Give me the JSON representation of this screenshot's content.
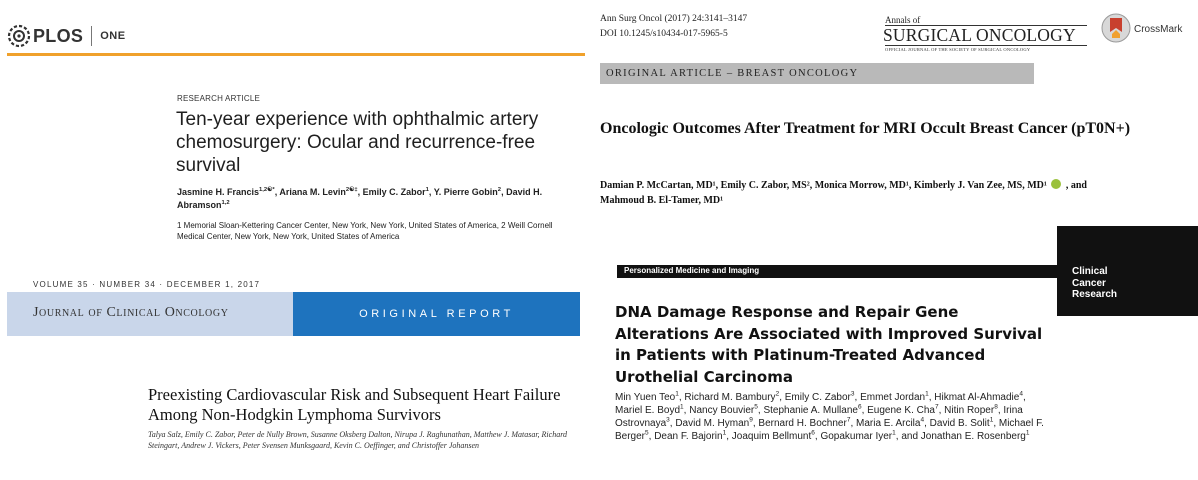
{
  "plos": {
    "brand": "PLOS",
    "journal": "ONE",
    "kicker": "RESEARCH ARTICLE",
    "title": "Ten-year experience with ophthalmic artery chemosurgery: Ocular and recurrence-free survival",
    "authors": [
      {
        "name": "Jasmine H. Francis",
        "sup": "1,2☯*"
      },
      {
        "name": "Ariana M. Levin",
        "sup": "2☯‡"
      },
      {
        "name": "Emily C. Zabor",
        "sup": "1"
      },
      {
        "name": "Y. Pierre Gobin",
        "sup": "2"
      },
      {
        "name": "David H. Abramson",
        "sup": "1,2"
      }
    ],
    "affiliations": "1 Memorial Sloan-Kettering Cancer Center, New York, New York, United States of America, 2 Weill Cornell Medical Center, New York, New York, United States of America",
    "accent_color": "#f0a12b"
  },
  "aso": {
    "citation_line1": "Ann Surg Oncol (2017) 24:3141–3147",
    "citation_line2": "DOI 10.1245/s10434-017-5965-5",
    "journal_prefix": "Annals of",
    "journal_name": "SURGICAL ONCOLOGY",
    "journal_tagline": "OFFICIAL JOURNAL OF THE SOCIETY OF SURGICAL ONCOLOGY",
    "crossmark_label": "CrossMark",
    "section": "ORIGINAL ARTICLE – BREAST ONCOLOGY",
    "title": "Oncologic Outcomes After Treatment for MRI Occult Breast Cancer (pT0N+)",
    "authors_line1": "Damian P. McCartan, MD¹, Emily C. Zabor, MS², Monica Morrow, MD¹, Kimberly J. Van Zee, MS, MD¹",
    "authors_and": ", and",
    "authors_line2": "Mahmoud B. El-Tamer, MD¹",
    "orcid_icon": "orcid-icon"
  },
  "jco": {
    "volume_line": "VOLUME 35 · NUMBER 34 · DECEMBER 1, 2017",
    "journal_name": "Journal of Clinical Oncology",
    "article_type": "ORIGINAL REPORT",
    "title": "Preexisting Cardiovascular Risk and Subsequent Heart Failure Among Non-Hodgkin Lymphoma Survivors",
    "authors": "Talya Salz, Emily C. Zabor, Peter de Nully Brown, Susanne Oksberg Dalton, Nirupa J. Raghunathan, Matthew J. Matasar, Richard Steingart, Andrew J. Vickers, Peter Svensen Munksgaard, Kevin C. Oeffinger, and Christoffer Johansen",
    "bar_light_color": "#c9d6ea",
    "bar_dark_color": "#1e73be"
  },
  "ccr": {
    "section": "Personalized Medicine and Imaging",
    "journal_lines": [
      "Clinical",
      "Cancer",
      "Research"
    ],
    "title": "DNA Damage Response and Repair Gene Alterations Are Associated with Improved Survival in Patients with Platinum-Treated Advanced Urothelial Carcinoma",
    "authors": [
      {
        "name": "Min Yuen Teo",
        "sup": "1"
      },
      {
        "name": "Richard M. Bambury",
        "sup": "2"
      },
      {
        "name": "Emily C. Zabor",
        "sup": "3"
      },
      {
        "name": "Emmet Jordan",
        "sup": "1"
      },
      {
        "name": "Hikmat Al-Ahmadie",
        "sup": "4"
      },
      {
        "name": "Mariel E. Boyd",
        "sup": "1"
      },
      {
        "name": "Nancy Bouvier",
        "sup": "5"
      },
      {
        "name": "Stephanie A. Mullane",
        "sup": "6"
      },
      {
        "name": "Eugene K. Cha",
        "sup": "7"
      },
      {
        "name": "Nitin Roper",
        "sup": "8"
      },
      {
        "name": "Irina Ostrovnaya",
        "sup": "3"
      },
      {
        "name": "David M. Hyman",
        "sup": "9"
      },
      {
        "name": "Bernard H. Bochner",
        "sup": "7"
      },
      {
        "name": "Maria E. Arcila",
        "sup": "4"
      },
      {
        "name": "David B. Solit",
        "sup": "1"
      },
      {
        "name": "Michael F. Berger",
        "sup": "5"
      },
      {
        "name": "Dean F. Bajorin",
        "sup": "1"
      },
      {
        "name": "Joaquim Bellmunt",
        "sup": "6"
      },
      {
        "name": "Gopakumar Iyer",
        "sup": "1"
      },
      {
        "name": "Jonathan E. Rosenberg",
        "sup": "1",
        "last": true
      }
    ]
  }
}
